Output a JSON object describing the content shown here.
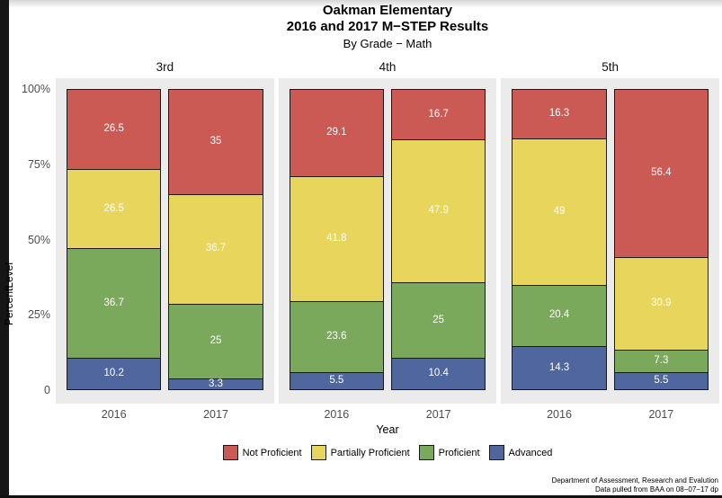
{
  "page": {
    "title_line1": "Oakman Elementary",
    "title_line2": "2016 and 2017 M−STEP Results",
    "subtitle": "By Grade − Math",
    "footer_line1": "Department of Assessment, Research and Evalution",
    "footer_line2": "Data pulled from BAA on 08−07−17 dp"
  },
  "chart_data": {
    "type": "bar",
    "stacked": true,
    "percent_scale": true,
    "xlabel": "Year",
    "ylabel": "PercentLevel",
    "ylim": [
      0,
      100
    ],
    "grid": false,
    "legend_position": "bottom",
    "panel_background": "#EBEBEB",
    "y_ticks": [
      {
        "label": "100%",
        "value": 100
      },
      {
        "label": "75%",
        "value": 75
      },
      {
        "label": "50%",
        "value": 50
      },
      {
        "label": "25%",
        "value": 25
      },
      {
        "label": "0",
        "value": 0
      }
    ],
    "categories": [
      "2016",
      "2017"
    ],
    "series_bottom_to_top": [
      "Advanced",
      "Proficient",
      "Partially Proficient",
      "Not Proficient"
    ],
    "colors": {
      "Not Proficient": "#CB5A55",
      "Partially Proficient": "#E8D65C",
      "Proficient": "#7AA95B",
      "Advanced": "#50669E"
    },
    "legend": [
      "Not Proficient",
      "Partially Proficient",
      "Proficient",
      "Advanced"
    ],
    "facets": [
      {
        "label": "3rd",
        "bars": [
          {
            "x": "2016",
            "segments": [
              {
                "name": "Advanced",
                "value": 10.2,
                "label": "10.2"
              },
              {
                "name": "Proficient",
                "value": 36.7,
                "label": "36.7"
              },
              {
                "name": "Partially Proficient",
                "value": 26.5,
                "label": "26.5"
              },
              {
                "name": "Not Proficient",
                "value": 26.5,
                "label": "26.5"
              }
            ]
          },
          {
            "x": "2017",
            "segments": [
              {
                "name": "Advanced",
                "value": 3.3,
                "label": "3.3"
              },
              {
                "name": "Proficient",
                "value": 25,
                "label": "25"
              },
              {
                "name": "Partially Proficient",
                "value": 36.7,
                "label": "36.7"
              },
              {
                "name": "Not Proficient",
                "value": 35,
                "label": "35"
              }
            ]
          }
        ]
      },
      {
        "label": "4th",
        "bars": [
          {
            "x": "2016",
            "segments": [
              {
                "name": "Advanced",
                "value": 5.5,
                "label": "5.5"
              },
              {
                "name": "Proficient",
                "value": 23.6,
                "label": "23.6"
              },
              {
                "name": "Partially Proficient",
                "value": 41.8,
                "label": "41.8"
              },
              {
                "name": "Not Proficient",
                "value": 29.1,
                "label": "29.1"
              }
            ]
          },
          {
            "x": "2017",
            "segments": [
              {
                "name": "Advanced",
                "value": 10.4,
                "label": "10.4"
              },
              {
                "name": "Proficient",
                "value": 25,
                "label": "25"
              },
              {
                "name": "Partially Proficient",
                "value": 47.9,
                "label": "47.9"
              },
              {
                "name": "Not Proficient",
                "value": 16.7,
                "label": "16.7"
              }
            ]
          }
        ]
      },
      {
        "label": "5th",
        "bars": [
          {
            "x": "2016",
            "segments": [
              {
                "name": "Advanced",
                "value": 14.3,
                "label": "14.3"
              },
              {
                "name": "Proficient",
                "value": 20.4,
                "label": "20.4"
              },
              {
                "name": "Partially Proficient",
                "value": 49,
                "label": "49"
              },
              {
                "name": "Not Proficient",
                "value": 16.3,
                "label": "16.3"
              }
            ]
          },
          {
            "x": "2017",
            "segments": [
              {
                "name": "Advanced",
                "value": 5.5,
                "label": "5.5"
              },
              {
                "name": "Proficient",
                "value": 7.3,
                "label": "7.3"
              },
              {
                "name": "Partially Proficient",
                "value": 30.9,
                "label": "30.9"
              },
              {
                "name": "Not Proficient",
                "value": 56.4,
                "label": "56.4"
              }
            ]
          }
        ]
      }
    ]
  }
}
